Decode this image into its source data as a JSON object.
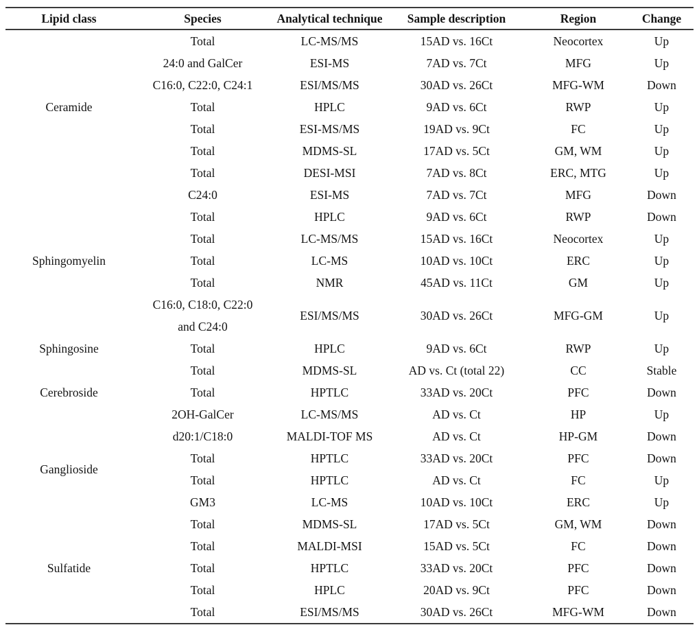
{
  "page": {
    "background": "#ffffff",
    "text_color": "#141414",
    "rule_color": "#3a3a3a"
  },
  "table": {
    "columns": [
      "Lipid class",
      "Species",
      "Analytical technique",
      "Sample description",
      "Region",
      "Change"
    ],
    "groups": [
      {
        "lipid_class": "Ceramide",
        "rows": [
          {
            "species": "Total",
            "technique": "LC-MS/MS",
            "sample": "15AD vs. 16Ct",
            "region": "Neocortex",
            "change": "Up"
          },
          {
            "species": "24:0 and GalCer",
            "technique": "ESI-MS",
            "sample": "7AD vs. 7Ct",
            "region": "MFG",
            "change": "Up"
          },
          {
            "species": "C16:0, C22:0, C24:1",
            "technique": "ESI/MS/MS",
            "sample": "30AD vs. 26Ct",
            "region": "MFG-WM",
            "change": "Down"
          },
          {
            "species": "Total",
            "technique": "HPLC",
            "sample": "9AD vs. 6Ct",
            "region": "RWP",
            "change": "Up"
          },
          {
            "species": "Total",
            "technique": "ESI-MS/MS",
            "sample": "19AD vs. 9Ct",
            "region": "FC",
            "change": "Up"
          },
          {
            "species": "Total",
            "technique": "MDMS-SL",
            "sample": "17AD vs. 5Ct",
            "region": "GM, WM",
            "change": "Up"
          },
          {
            "species": "Total",
            "technique": "DESI-MSI",
            "sample": "7AD vs. 8Ct",
            "region": "ERC, MTG",
            "change": "Up"
          }
        ]
      },
      {
        "lipid_class": "Sphingomyelin",
        "rows": [
          {
            "species": "C24:0",
            "technique": "ESI-MS",
            "sample": "7AD vs. 7Ct",
            "region": "MFG",
            "change": "Down"
          },
          {
            "species": "Total",
            "technique": "HPLC",
            "sample": "9AD vs. 6Ct",
            "region": "RWP",
            "change": "Down"
          },
          {
            "species": "Total",
            "technique": "LC-MS/MS",
            "sample": "15AD vs. 16Ct",
            "region": "Neocortex",
            "change": "Up"
          },
          {
            "species": "Total",
            "technique": "LC-MS",
            "sample": "10AD vs. 10Ct",
            "region": "ERC",
            "change": "Up"
          },
          {
            "species": "Total",
            "technique": "NMR",
            "sample": "45AD vs. 11Ct",
            "region": "GM",
            "change": "Up"
          },
          {
            "species": "C16:0, C18:0, C22:0\nand C24:0",
            "technique": "ESI/MS/MS",
            "sample": "30AD vs. 26Ct",
            "region": "MFG-GM",
            "change": "Up"
          }
        ]
      },
      {
        "lipid_class": "Sphingosine",
        "rows": [
          {
            "species": "Total",
            "technique": "HPLC",
            "sample": "9AD vs. 6Ct",
            "region": "RWP",
            "change": "Up"
          }
        ]
      },
      {
        "lipid_class": "Cerebroside",
        "rows": [
          {
            "species": "Total",
            "technique": "MDMS-SL",
            "sample": "AD vs. Ct (total 22)",
            "region": "CC",
            "change": "Stable"
          },
          {
            "species": "Total",
            "technique": "HPTLC",
            "sample": "33AD vs. 20Ct",
            "region": "PFC",
            "change": "Down"
          },
          {
            "species": "2OH-GalCer",
            "technique": "LC-MS/MS",
            "sample": "AD vs. Ct",
            "region": "HP",
            "change": "Up"
          }
        ]
      },
      {
        "lipid_class": "Ganglioside",
        "rows": [
          {
            "species": "d20:1/C18:0",
            "technique": "MALDI-TOF MS",
            "sample": "AD vs. Ct",
            "region": "HP-GM",
            "change": "Down"
          },
          {
            "species": "Total",
            "technique": "HPTLC",
            "sample": "33AD vs. 20Ct",
            "region": "PFC",
            "change": "Down"
          },
          {
            "species": "Total",
            "technique": "HPTLC",
            "sample": "AD vs. Ct",
            "region": "FC",
            "change": "Up"
          },
          {
            "species": "GM3",
            "technique": "LC-MS",
            "sample": "10AD vs. 10Ct",
            "region": "ERC",
            "change": "Up"
          }
        ]
      },
      {
        "lipid_class": "Sulfatide",
        "rows": [
          {
            "species": "Total",
            "technique": "MDMS-SL",
            "sample": "17AD vs. 5Ct",
            "region": "GM, WM",
            "change": "Down"
          },
          {
            "species": "Total",
            "technique": "MALDI-MSI",
            "sample": "15AD vs. 5Ct",
            "region": "FC",
            "change": "Down"
          },
          {
            "species": "Total",
            "technique": "HPTLC",
            "sample": "33AD vs. 20Ct",
            "region": "PFC",
            "change": "Down"
          },
          {
            "species": "Total",
            "technique": "HPLC",
            "sample": "20AD vs. 9Ct",
            "region": "PFC",
            "change": "Down"
          },
          {
            "species": "Total",
            "technique": "ESI/MS/MS",
            "sample": "30AD vs. 26Ct",
            "region": "MFG-WM",
            "change": "Down"
          }
        ]
      }
    ]
  }
}
